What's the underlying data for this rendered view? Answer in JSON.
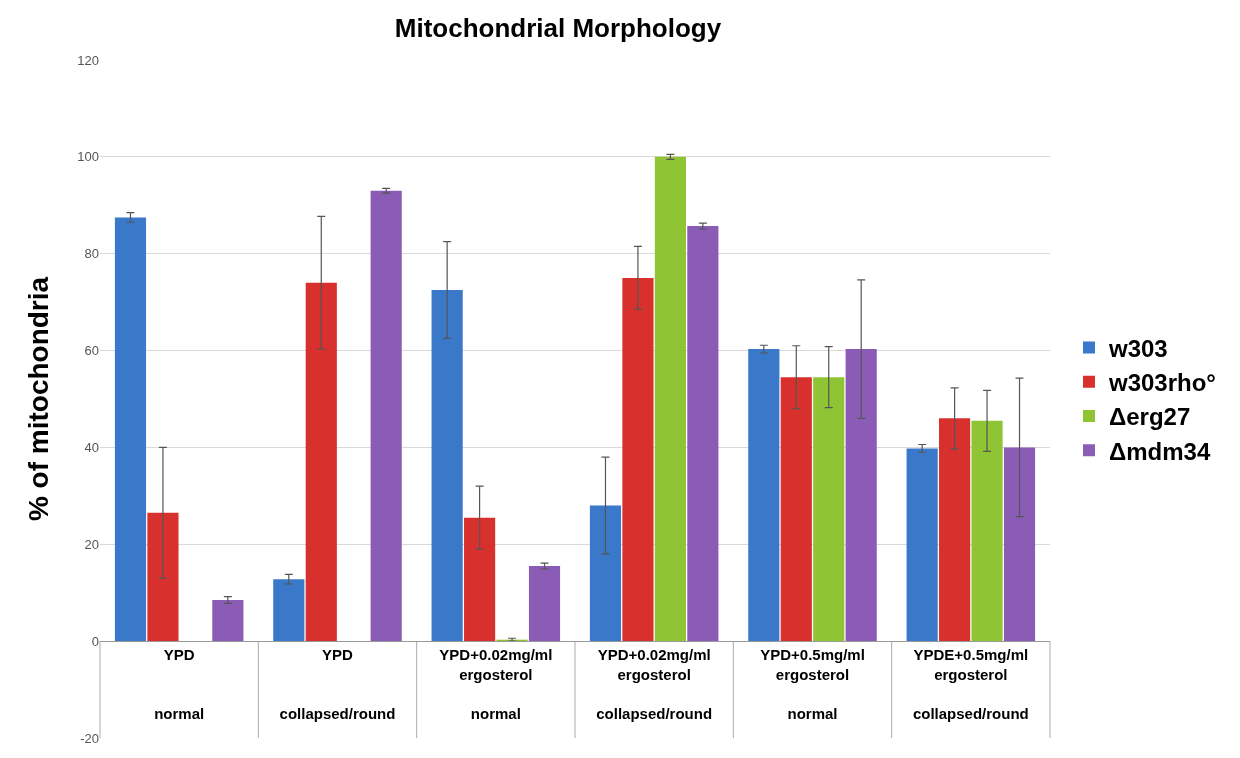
{
  "chart_data": {
    "type": "bar",
    "title": "Mitochondrial Morphology",
    "ylabel": "% of mitochondria",
    "categories": [
      "YPD\n\nnormal",
      "YPD\n\ncollapsed/round",
      "YPD+0.02mg/ml\nergosterol\n\nnormal",
      "YPD+0.02mg/ml\nergosterol\n\ncollapsed/round",
      "YPD+0.5mg/ml\nergosterol\n\nnormal",
      "YPDE+0.5mg/ml\nergosterol\n\ncollapsed/round"
    ],
    "series": [
      {
        "name": "w303",
        "color": "#3a78c9",
        "values": [
          87.5,
          12.8,
          72.5,
          28,
          60.3,
          39.8
        ],
        "errors": [
          1,
          1,
          10,
          10,
          0.8,
          0.8
        ]
      },
      {
        "name": "w303rho°",
        "color": "#d8302c",
        "values": [
          26.5,
          74,
          25.5,
          75,
          54.5,
          46
        ],
        "errors": [
          13.5,
          13.7,
          6.5,
          6.5,
          6.5,
          6.3
        ]
      },
      {
        "name": "Δerg27",
        "color": "#8fc435",
        "values": [
          null,
          null,
          0.3,
          100,
          54.5,
          45.5
        ],
        "errors": [
          null,
          null,
          0.3,
          0.5,
          6.3,
          6.3
        ]
      },
      {
        "name": "Δmdm34",
        "color": "#8a5cb5",
        "values": [
          8.5,
          93,
          15.5,
          85.7,
          60.3,
          40
        ],
        "errors": [
          0.7,
          0.5,
          0.6,
          0.6,
          14.3,
          14.3
        ]
      }
    ],
    "ylim": [
      -20,
      120
    ],
    "yticks": [
      -20,
      0,
      20,
      40,
      60,
      80,
      100,
      120
    ],
    "grid": "y",
    "legend": "right"
  }
}
